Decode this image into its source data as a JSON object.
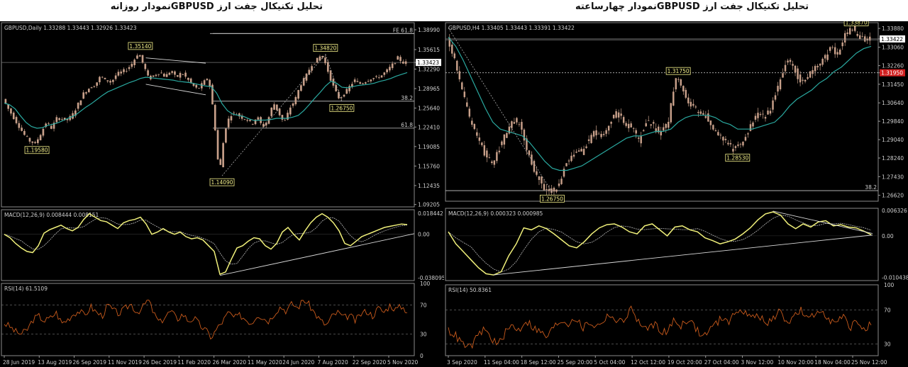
{
  "titles": {
    "left": "تحلیل تکنیکال جفت ارز  GBPUSDنمودار روزانه",
    "right": "تحلیل تکنیکال جفت ارز  GBPUSDنمودار چهارساعته"
  },
  "colors": {
    "background": "#000000",
    "candle": "#c8a08a",
    "moving_average": "#2aa9a0",
    "macd": "#f0f07a",
    "signal": "#b8b8b8",
    "rsi": "#c85a1c",
    "label_box": "#f4f08a",
    "price_tag_red": "#d22020",
    "trendline": "#d8d8d8",
    "fib_level": "#c8c8c8"
  },
  "chart_data": [
    {
      "id": "daily",
      "type": "candlestick",
      "header": "GBPUSD,Daily  1.33288 1.33443 1.32926 1.33423",
      "y_ticks": [
        "1.38990",
        "1.35615",
        "1.33423",
        "1.32290",
        "1.28965",
        "1.25640",
        "1.22410",
        "1.19085",
        "1.15760",
        "1.12435",
        "1.09205"
      ],
      "ylim": [
        1.088,
        1.402
      ],
      "current_price": "1.33423",
      "x_ticks": [
        "28 Jun 2019",
        "13 Aug 2019",
        "26 Sep 2019",
        "11 Nov 2019",
        "26 Dec 2019",
        "11 Feb 2020",
        "26 Mar 2020",
        "11 May 2020",
        "24 Jun 2020",
        "7 Aug 2020",
        "22 Sep 2020",
        "5 Nov 2020"
      ],
      "price_path": [
        1.272,
        1.255,
        1.24,
        1.225,
        1.21,
        1.2,
        1.196,
        1.213,
        1.232,
        1.222,
        1.24,
        1.238,
        1.236,
        1.247,
        1.265,
        1.283,
        1.291,
        1.295,
        1.31,
        1.305,
        1.3,
        1.314,
        1.318,
        1.323,
        1.334,
        1.351,
        1.33,
        1.305,
        1.313,
        1.318,
        1.31,
        1.32,
        1.308,
        1.317,
        1.307,
        1.296,
        1.288,
        1.299,
        1.31,
        1.245,
        1.141,
        1.218,
        1.245,
        1.248,
        1.241,
        1.238,
        1.229,
        1.242,
        1.224,
        1.236,
        1.266,
        1.248,
        1.23,
        1.256,
        1.27,
        1.296,
        1.31,
        1.33,
        1.338,
        1.348,
        1.322,
        1.295,
        1.274,
        1.278,
        1.292,
        1.304,
        1.298,
        1.302,
        1.307,
        1.308,
        1.312,
        1.32,
        1.33,
        1.342,
        1.334
      ],
      "moving_average": [
        1.265,
        1.262,
        1.255,
        1.243,
        1.232,
        1.225,
        1.222,
        1.223,
        1.227,
        1.229,
        1.232,
        1.236,
        1.24,
        1.244,
        1.251,
        1.258,
        1.264,
        1.271,
        1.278,
        1.284,
        1.288,
        1.292,
        1.296,
        1.3,
        1.303,
        1.307,
        1.309,
        1.308,
        1.307,
        1.306,
        1.305,
        1.304,
        1.302,
        1.301,
        1.3,
        1.298,
        1.296,
        1.294,
        1.293,
        1.282,
        1.264,
        1.252,
        1.246,
        1.244,
        1.242,
        1.238,
        1.235,
        1.236,
        1.236,
        1.237,
        1.239,
        1.239,
        1.239,
        1.241,
        1.244,
        1.252,
        1.262,
        1.273,
        1.283,
        1.294,
        1.302,
        1.299,
        1.292,
        1.291,
        1.293,
        1.295,
        1.296,
        1.297,
        1.299,
        1.302,
        1.304,
        1.307,
        1.311,
        1.314,
        1.317
      ],
      "labels": [
        {
          "text": "1.35140",
          "x_index": 25,
          "price": 1.3514,
          "anchor": "above"
        },
        {
          "text": "1.19580",
          "x_index": 6,
          "price": 1.1958,
          "anchor": "below"
        },
        {
          "text": "1.14090",
          "x_index": 40,
          "price": 1.1409,
          "anchor": "below"
        },
        {
          "text": "1.34820",
          "x_index": 59,
          "price": 1.3482,
          "anchor": "above"
        },
        {
          "text": "1.26750",
          "x_index": 62,
          "price": 1.2675,
          "anchor": "below"
        }
      ],
      "fib_levels": [
        {
          "text": "FE 61.8",
          "price": 1.3835
        },
        {
          "text": "38.2",
          "price": 1.2682
        },
        {
          "text": "61.8",
          "price": 1.2222
        }
      ],
      "macd": {
        "header": "MACD(12,26,9) 0.008444 0.008151",
        "y_ticks": [
          "0.018442",
          "0.00",
          "-0.038095"
        ],
        "ylim": [
          -0.0405,
          0.0215
        ],
        "values": [
          0.0,
          -0.003,
          -0.008,
          -0.012,
          -0.015,
          -0.016,
          -0.01,
          0.001,
          0.004,
          0.006,
          0.008,
          0.005,
          0.003,
          0.006,
          0.013,
          0.018,
          0.015,
          0.012,
          0.011,
          0.008,
          0.005,
          0.01,
          0.012,
          0.013,
          0.015,
          0.009,
          0.0,
          0.002,
          0.005,
          0.002,
          0.0,
          0.002,
          -0.002,
          -0.004,
          -0.003,
          -0.005,
          -0.01,
          -0.015,
          -0.035,
          -0.033,
          -0.022,
          -0.012,
          -0.01,
          -0.006,
          -0.003,
          -0.004,
          -0.01,
          -0.013,
          -0.008,
          0.002,
          0.006,
          0.0,
          -0.005,
          0.003,
          0.01,
          0.015,
          0.018,
          0.015,
          0.01,
          0.003,
          -0.008,
          -0.01,
          -0.006,
          -0.002,
          0.0,
          0.002,
          0.004,
          0.006,
          0.007,
          0.008,
          0.009,
          0.0085
        ]
      },
      "rsi": {
        "header": "RSI(14) 61.5109",
        "y_ticks": [
          "100",
          "70",
          "30",
          "0"
        ],
        "ylim": [
          0,
          100
        ],
        "values": [
          45,
          40,
          33,
          30,
          36,
          50,
          55,
          48,
          52,
          60,
          45,
          50,
          58,
          62,
          55,
          68,
          60,
          55,
          70,
          62,
          58,
          65,
          72,
          60,
          66,
          78,
          58,
          45,
          55,
          62,
          50,
          58,
          48,
          52,
          42,
          35,
          25,
          38,
          48,
          60,
          52,
          56,
          50,
          45,
          58,
          52,
          48,
          60,
          68,
          62,
          72,
          66,
          78,
          70,
          58,
          48,
          42,
          55,
          60,
          52,
          56,
          48,
          58,
          62,
          55,
          66,
          60,
          70,
          64,
          68,
          62
        ]
      }
    },
    {
      "id": "h4",
      "type": "candlestick",
      "header": "GBPUSD,H4  1.33405 1.33443 1.33391 1.33422",
      "y_ticks": [
        "1.33880",
        "1.33422",
        "1.33060",
        "1.32260",
        "1.31950",
        "1.31450",
        "1.30640",
        "1.29840",
        "1.29040",
        "1.28240",
        "1.27430",
        "1.26620"
      ],
      "ylim": [
        1.2636,
        1.3413
      ],
      "current_price": "1.33422",
      "red_price": "1.31950",
      "x_ticks": [
        "3 Sep 2020",
        "11 Sep 04:00",
        "18 Sep 12:00",
        "25 Sep 20:00",
        "5 Oct 04:00",
        "12 Oct 12:00",
        "19 Oct 20:00",
        "27 Oct 04:00",
        "3 Nov 12:00",
        "10 Nov 20:00",
        "18 Nov 04:00",
        "25 Nov 12:00"
      ],
      "price_path": [
        1.334,
        1.325,
        1.312,
        1.3,
        1.292,
        1.285,
        1.28,
        1.286,
        1.294,
        1.299,
        1.297,
        1.284,
        1.276,
        1.27,
        1.268,
        1.27,
        1.279,
        1.285,
        1.284,
        1.289,
        1.294,
        1.292,
        1.297,
        1.302,
        1.298,
        1.296,
        1.29,
        1.299,
        1.296,
        1.293,
        1.298,
        1.318,
        1.312,
        1.305,
        1.303,
        1.301,
        1.296,
        1.292,
        1.288,
        1.286,
        1.29,
        1.295,
        1.302,
        1.3,
        1.305,
        1.315,
        1.325,
        1.322,
        1.315,
        1.318,
        1.322,
        1.325,
        1.33,
        1.328,
        1.336,
        1.339,
        1.335,
        1.334
      ],
      "moving_average": [
        1.335,
        1.331,
        1.325,
        1.318,
        1.311,
        1.304,
        1.298,
        1.295,
        1.294,
        1.293,
        1.292,
        1.289,
        1.285,
        1.281,
        1.278,
        1.277,
        1.277,
        1.278,
        1.279,
        1.281,
        1.283,
        1.285,
        1.287,
        1.289,
        1.291,
        1.292,
        1.292,
        1.293,
        1.294,
        1.294,
        1.295,
        1.298,
        1.3,
        1.301,
        1.301,
        1.301,
        1.3,
        1.298,
        1.297,
        1.295,
        1.295,
        1.295,
        1.296,
        1.297,
        1.298,
        1.301,
        1.305,
        1.308,
        1.31,
        1.312,
        1.315,
        1.317,
        1.32,
        1.322,
        1.325,
        1.328,
        1.33,
        1.331
      ],
      "labels": [
        {
          "text": "1.33870",
          "x_index": 55,
          "price": 1.3387,
          "anchor": "above"
        },
        {
          "text": "1.31750",
          "x_index": 31,
          "price": 1.3175,
          "anchor": "above"
        },
        {
          "text": "1.28530",
          "x_index": 39,
          "price": 1.2853,
          "anchor": "below"
        },
        {
          "text": "1.26750",
          "x_index": 14,
          "price": 1.2675,
          "anchor": "below"
        }
      ],
      "fib_levels": [
        {
          "text": "38.2",
          "price": 1.2682
        }
      ],
      "macd": {
        "header": "MACD(12,26,9) 0.000323 0.000985",
        "y_ticks": [
          "0.006326",
          "0.00",
          "-0.010438"
        ],
        "ylim": [
          -0.0112,
          0.0069
        ],
        "values": [
          0.001,
          -0.002,
          -0.004,
          -0.006,
          -0.008,
          -0.0095,
          -0.0098,
          -0.009,
          -0.005,
          -0.002,
          0.002,
          0.0015,
          0.0025,
          0.0018,
          0.0005,
          -0.001,
          -0.0025,
          -0.003,
          -0.0015,
          0.0005,
          0.002,
          0.0028,
          0.003,
          0.0022,
          0.001,
          0.0005,
          0.0025,
          0.003,
          0.0015,
          0.0,
          0.0022,
          0.0025,
          0.0015,
          0.001,
          -0.0005,
          -0.0012,
          -0.002,
          -0.0015,
          -0.0008,
          0.0005,
          0.002,
          0.004,
          0.0055,
          0.006,
          0.0052,
          0.003,
          0.0018,
          0.003,
          0.0022,
          0.0035,
          0.0038,
          0.0025,
          0.0028,
          0.0022,
          0.002,
          0.0012,
          0.0003
        ]
      },
      "rsi": {
        "header": "RSI(14) 50.8361",
        "y_ticks": [
          "100",
          "70",
          "30"
        ],
        "ylim": [
          16,
          100
        ],
        "values": [
          46,
          40,
          30,
          25,
          36,
          48,
          38,
          28,
          42,
          52,
          46,
          58,
          50,
          44,
          38,
          50,
          58,
          54,
          62,
          48,
          56,
          50,
          58,
          66,
          54,
          60,
          72,
          56,
          46,
          54,
          48,
          42,
          58,
          52,
          60,
          50,
          38,
          46,
          54,
          62,
          56,
          72,
          68,
          60,
          66,
          52,
          60,
          68,
          56,
          62,
          70,
          58,
          64,
          72,
          60,
          54,
          62,
          50,
          56,
          48,
          52
        ]
      }
    }
  ]
}
